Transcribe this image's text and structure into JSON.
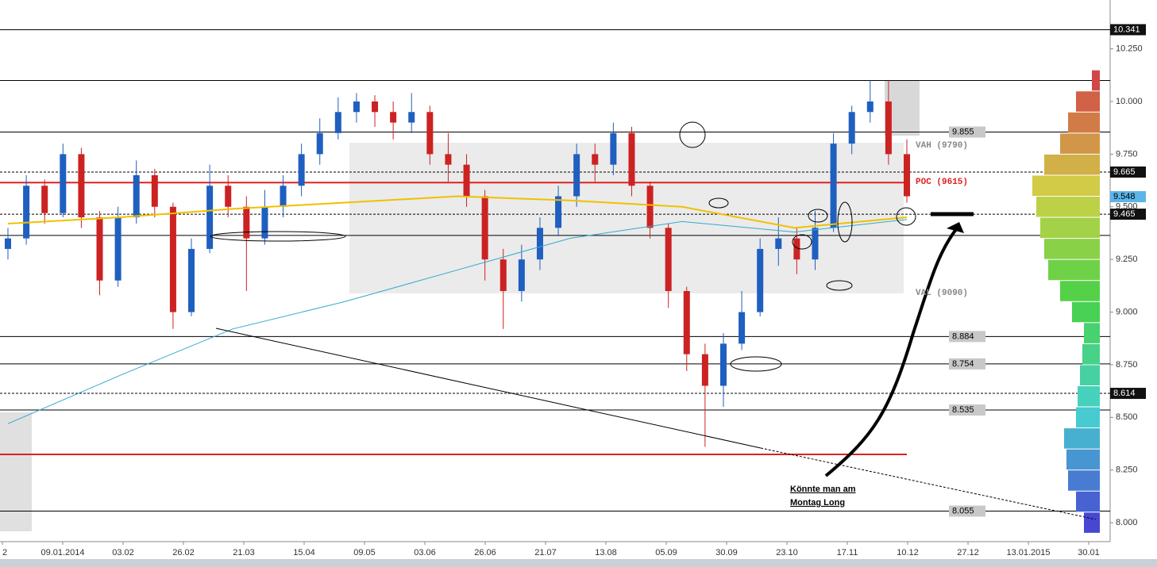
{
  "chart_data": {
    "type": "candlestick",
    "ylim": [
      7.91,
      10.482
    ],
    "yticks": [
      {
        "value": 8,
        "label": "8.000"
      },
      {
        "value": 8.25,
        "label": "8.250"
      },
      {
        "value": 8.5,
        "label": "8.500"
      },
      {
        "value": 8.75,
        "label": "8.750"
      },
      {
        "value": 9,
        "label": "9.000"
      },
      {
        "value": 9.25,
        "label": "9.250"
      },
      {
        "value": 9.5,
        "label": "9.500"
      },
      {
        "value": 9.75,
        "label": "9.750"
      },
      {
        "value": 10,
        "label": "10.000"
      },
      {
        "value": 10.25,
        "label": "10.250"
      }
    ],
    "categories": [
      "2",
      "09.01.2014",
      "03.02",
      "26.02",
      "21.03",
      "15.04",
      "09.05",
      "03.06",
      "26.06",
      "21.07",
      "13.08",
      "05.09",
      "30.09",
      "23.10",
      "17.11",
      "10.12",
      "27.12",
      "13.01.2015",
      "30.01"
    ],
    "up_color": "#1f5fbf",
    "down_color": "#cc2222",
    "open": [
      9.3,
      9.35,
      9.6,
      9.47,
      9.75,
      9.45,
      9.15,
      9.45,
      9.65,
      9.5,
      9.0,
      9.3,
      9.6,
      9.5,
      9.35,
      9.5,
      9.6,
      9.75,
      9.85,
      9.95,
      10.0,
      9.95,
      9.9,
      9.95,
      9.75,
      9.7,
      9.55,
      9.25,
      9.1,
      9.25,
      9.4,
      9.55,
      9.75,
      9.7,
      9.85,
      9.6,
      9.4,
      9.1,
      8.8,
      8.65,
      8.85,
      9.0,
      9.3,
      9.35,
      9.25,
      9.4,
      9.8,
      9.95,
      10.0,
      9.75
    ],
    "high": [
      9.4,
      9.65,
      9.63,
      9.8,
      9.78,
      9.48,
      9.5,
      9.72,
      9.68,
      9.52,
      9.35,
      9.7,
      9.65,
      9.55,
      9.58,
      9.65,
      9.8,
      9.92,
      10.02,
      10.04,
      10.03,
      10.0,
      10.04,
      9.98,
      9.85,
      9.75,
      9.58,
      9.3,
      9.32,
      9.45,
      9.6,
      9.8,
      9.8,
      9.9,
      9.88,
      9.62,
      9.42,
      9.12,
      8.85,
      8.9,
      9.1,
      9.35,
      9.45,
      9.4,
      9.48,
      9.85,
      9.98,
      10.1,
      10.1,
      9.82
    ],
    "low": [
      9.25,
      9.32,
      9.42,
      9.45,
      9.4,
      9.08,
      9.12,
      9.42,
      9.45,
      8.92,
      8.98,
      9.28,
      9.45,
      9.1,
      9.32,
      9.45,
      9.55,
      9.7,
      9.82,
      9.9,
      9.88,
      9.82,
      9.85,
      9.7,
      9.62,
      9.5,
      9.15,
      8.92,
      9.05,
      9.2,
      9.36,
      9.5,
      9.62,
      9.65,
      9.55,
      9.35,
      9.02,
      8.72,
      8.36,
      8.55,
      8.82,
      8.98,
      9.22,
      9.18,
      9.2,
      9.38,
      9.75,
      9.9,
      9.7,
      9.52
    ],
    "close": [
      9.35,
      9.6,
      9.47,
      9.75,
      9.45,
      9.15,
      9.45,
      9.65,
      9.5,
      9.0,
      9.3,
      9.6,
      9.5,
      9.35,
      9.5,
      9.6,
      9.75,
      9.85,
      9.95,
      10.0,
      9.95,
      9.9,
      9.95,
      9.75,
      9.7,
      9.55,
      9.25,
      9.1,
      9.25,
      9.4,
      9.55,
      9.75,
      9.7,
      9.85,
      9.6,
      9.4,
      9.1,
      8.8,
      8.65,
      8.85,
      9.0,
      9.3,
      9.35,
      9.25,
      9.4,
      9.8,
      9.95,
      10.0,
      9.75,
      9.55
    ],
    "lines": [
      {
        "color": "#f0c000",
        "values": [
          9.42,
          9.45,
          9.49,
          9.52,
          9.55,
          9.53,
          9.5,
          9.4,
          9.45
        ]
      },
      {
        "color": "#33aacc",
        "values": [
          8.47,
          8.7,
          8.92,
          9.05,
          9.2,
          9.35,
          9.43,
          9.38,
          9.44
        ]
      }
    ],
    "levels": [
      {
        "value": 10.341,
        "label": "10.341",
        "dashed": false,
        "tag": "axis-dark"
      },
      {
        "value": 9.855,
        "label": "9.855",
        "dashed": false,
        "tag": "inline"
      },
      {
        "value": 9.665,
        "label": "9.665",
        "dashed": true,
        "tag": "axis-dark"
      },
      {
        "value": 9.548,
        "label": "9.548",
        "dashed": null,
        "tag": "axis-blue"
      },
      {
        "value": 9.465,
        "label": "9.465",
        "dashed": true,
        "tag": "axis-dark"
      },
      {
        "value": 8.884,
        "label": "8.884",
        "dashed": false,
        "tag": "inline"
      },
      {
        "value": 8.754,
        "label": "8.754",
        "dashed": false,
        "tag": "inline"
      },
      {
        "value": 8.614,
        "label": "8.614",
        "dashed": true,
        "tag": "axis-dark"
      },
      {
        "value": 8.535,
        "label": "8.535",
        "dashed": false,
        "tag": "inline"
      },
      {
        "value": 8.055,
        "label": "8.055",
        "dashed": false,
        "tag": "inline"
      }
    ],
    "plain_levels": [
      10.1,
      9.364
    ],
    "red_levels": [
      9.615,
      8.324
    ],
    "red_color": "#e02020",
    "profile": {
      "prices": [
        8.0,
        8.1,
        8.2,
        8.3,
        8.4,
        8.5,
        8.6,
        8.7,
        8.8,
        8.9,
        9.0,
        9.1,
        9.2,
        9.3,
        9.4,
        9.5,
        9.6,
        9.7,
        9.8,
        9.9,
        10.0,
        10.1
      ],
      "values": [
        20,
        30,
        40,
        42,
        45,
        30,
        28,
        25,
        22,
        20,
        35,
        50,
        65,
        70,
        75,
        80,
        85,
        70,
        50,
        40,
        30,
        10
      ]
    },
    "annotations": {
      "vah": "VAH (9790)",
      "poc": "POC (9615)",
      "val": "VAL (9090)",
      "note_1": "Könnte man am",
      "note_2": "Montag  Long"
    }
  }
}
